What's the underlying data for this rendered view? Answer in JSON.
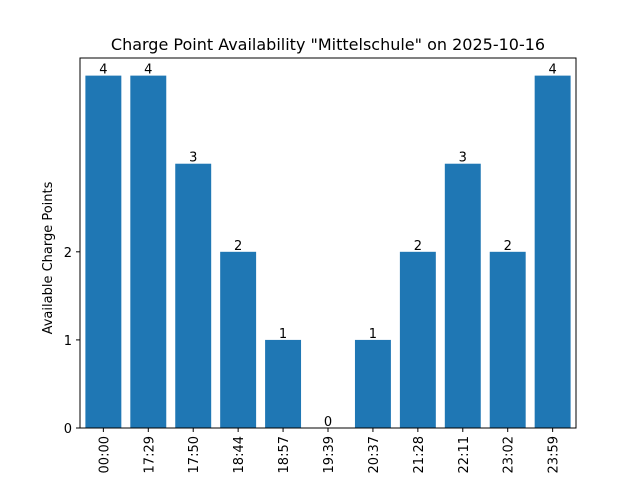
{
  "chart_data": {
    "type": "bar",
    "title": "Charge Point Availability \"Mittelschule\" on 2025-10-16",
    "xlabel": "",
    "ylabel": "Available Charge Points",
    "categories": [
      "00:00",
      "17:29",
      "17:50",
      "18:44",
      "18:57",
      "19:39",
      "20:37",
      "21:28",
      "22:11",
      "23:02",
      "23:59"
    ],
    "values": [
      4,
      4,
      3,
      2,
      1,
      0,
      1,
      2,
      3,
      2,
      4
    ],
    "y_ticks": [
      0,
      1,
      2
    ],
    "ylim": [
      0,
      4.2
    ],
    "grid": false,
    "bar_color": "#1f77b4"
  }
}
